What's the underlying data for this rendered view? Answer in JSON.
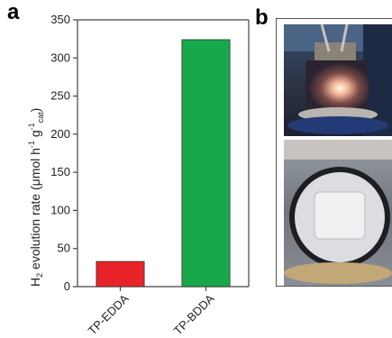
{
  "panels": {
    "a_label": "a",
    "b_label": "b"
  },
  "chart_data": {
    "type": "bar",
    "categories": [
      "TP-EDDA",
      "TP-BDDA"
    ],
    "values": [
      33,
      324
    ],
    "ylabel": {
      "main": "H",
      "sub2": "2",
      "mid": " evolution rate (μmol h",
      "supm1": "-1",
      "gsp": " g",
      "supm1b": "-1",
      "cat": "cat",
      "close": ")"
    },
    "ylim": [
      0,
      350
    ],
    "yticks": [
      0,
      50,
      100,
      150,
      200,
      250,
      300,
      350
    ],
    "colors": [
      "#e8232a",
      "#17a84b"
    ],
    "grid": false
  },
  "photos": {
    "top": {
      "description_icon": "photo-icon"
    },
    "bottom": {
      "description_icon": "photo-icon"
    }
  }
}
